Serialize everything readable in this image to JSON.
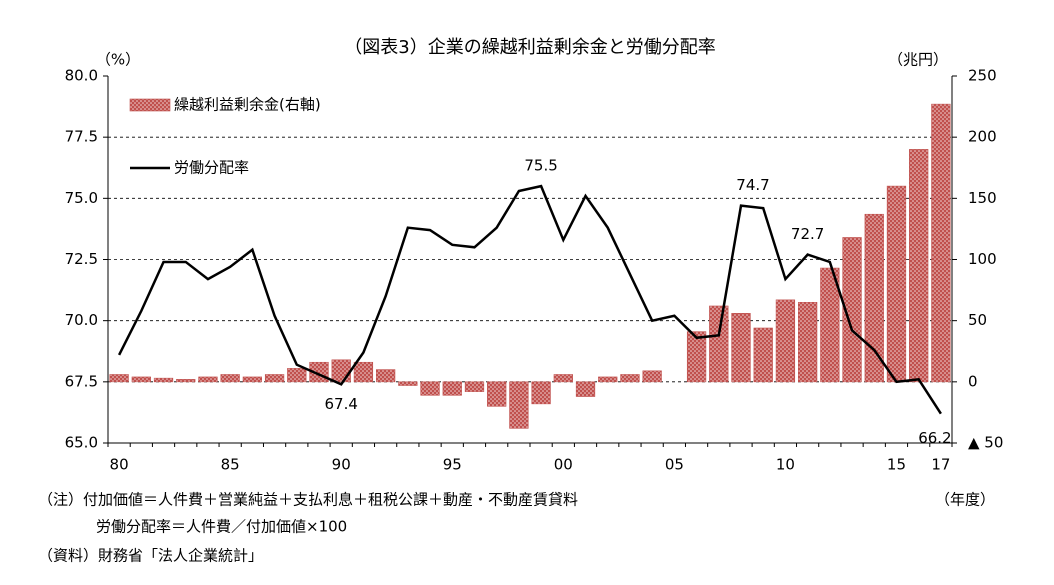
{
  "chart_data": {
    "type": "combo",
    "title": "（図表3）企業の繰越利益剰余金と労働分配率",
    "y_label": "（%）",
    "y2_label": "（兆円）",
    "x_label": "（年度）",
    "categories": [
      "80",
      null,
      null,
      null,
      null,
      "85",
      null,
      null,
      null,
      null,
      "90",
      null,
      null,
      null,
      null,
      "95",
      null,
      null,
      null,
      null,
      "00",
      null,
      null,
      null,
      null,
      "05",
      null,
      null,
      null,
      null,
      "10",
      null,
      null,
      null,
      null,
      "15",
      null,
      "17"
    ],
    "series": [
      {
        "name": "繰越利益剰余金(右軸)",
        "type": "bar",
        "axis": "y2",
        "color": "#c0504d",
        "values": [
          6,
          4,
          3,
          2,
          4,
          6,
          4,
          6,
          11,
          16,
          18,
          16,
          10,
          -3,
          -11,
          -11,
          -8,
          -20,
          -38,
          -18,
          6,
          -12,
          4,
          6,
          9,
          0,
          41,
          62,
          56,
          44,
          67,
          65,
          93,
          118,
          137,
          160,
          190,
          227
        ]
      },
      {
        "name": "労働分配率",
        "type": "line",
        "color": "#000000",
        "values": [
          68.6,
          70.4,
          72.4,
          72.4,
          71.7,
          72.2,
          72.9,
          70.2,
          68.2,
          67.8,
          67.4,
          68.7,
          71.0,
          73.8,
          73.7,
          73.1,
          73.0,
          73.8,
          75.3,
          75.5,
          73.3,
          75.1,
          73.8,
          71.9,
          70.0,
          70.2,
          69.3,
          69.4,
          74.7,
          74.6,
          71.7,
          72.7,
          72.4,
          69.6,
          68.8,
          67.5,
          67.6,
          66.2
        ]
      }
    ],
    "ylim": [
      65,
      80
    ],
    "yticks": [
      {
        "value": 65,
        "label": "65.0"
      },
      67.5,
      {
        "value": 70,
        "label": "70.0"
      },
      72.5,
      {
        "value": 75,
        "label": "75.0"
      },
      77.5,
      {
        "value": 80,
        "label": "80.0"
      }
    ],
    "y2lim": [
      -50,
      250
    ],
    "y2ticks": [
      {
        "value": -50,
        "label": "▲ 50"
      },
      0,
      50,
      100,
      150,
      200,
      250
    ],
    "grid": true,
    "legend": "upper left"
  },
  "notes": [
    "（注）付加価値＝人件費＋営業純益＋支払利息＋租税公課＋動産・不動産賃貸料",
    "労働分配率＝人件費／付加価値×100",
    "（資料）財務省「法人企業統計」"
  ]
}
